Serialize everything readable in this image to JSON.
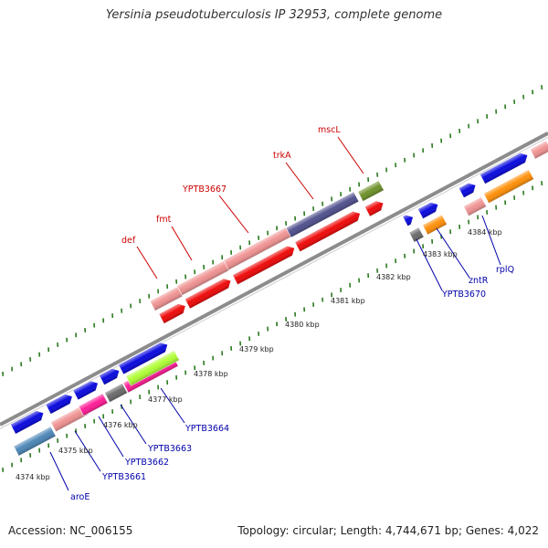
{
  "title": "Yersinia pseudotuberculosis IP 32953, complete genome",
  "footer": {
    "accession": "Accession: NC_006155",
    "summary": "Topology: circular; Length: 4,744,671 bp; Genes: 4,022"
  },
  "colors": {
    "backbone": "#8c8c8c",
    "tick": "#2a7a1f",
    "label_upper": "#cc0000",
    "label_lower": "#0000aa",
    "kbp_text": "#222222"
  },
  "scale_labels": [
    "4374 kbp",
    "4375 kbp",
    "4376 kbp",
    "4377 kbp",
    "4378 kbp",
    "4379 kbp",
    "4380 kbp",
    "4381 kbp",
    "4382 kbp",
    "4383 kbp",
    "4384 kbp"
  ],
  "upper_labels": [
    "def",
    "fmt",
    "YPTB3667",
    "trkA",
    "mscL"
  ],
  "lower_labels": [
    "aroE",
    "YPTB3661",
    "YPTB3662",
    "YPTB3663",
    "YPTB3664",
    "YPTB3670",
    "zntR",
    "rplQ"
  ]
}
